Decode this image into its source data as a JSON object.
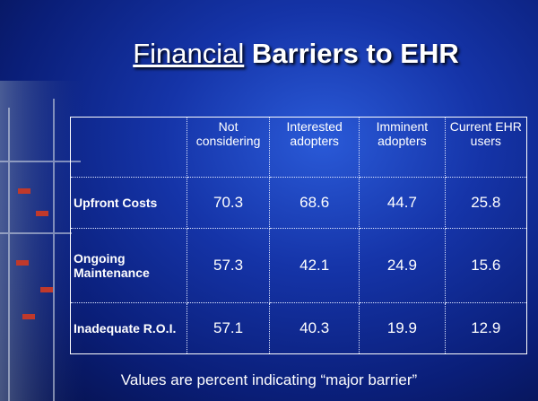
{
  "title": {
    "part1": "Financial",
    "part2": "Barriers to EHR"
  },
  "table": {
    "header": [
      "Not considering",
      "Interested adopters",
      "Imminent adopters",
      "Current EHR users"
    ],
    "rows": [
      [
        "Upfront Costs",
        70.3,
        68.6,
        44.7,
        25.8
      ],
      [
        "Ongoing Maintenance",
        57.3,
        42.1,
        24.9,
        15.6
      ],
      [
        "Inadequate R.O.I.",
        57.1,
        40.3,
        19.9,
        12.9
      ]
    ]
  },
  "footnote": "Values are percent indicating “major barrier”"
}
